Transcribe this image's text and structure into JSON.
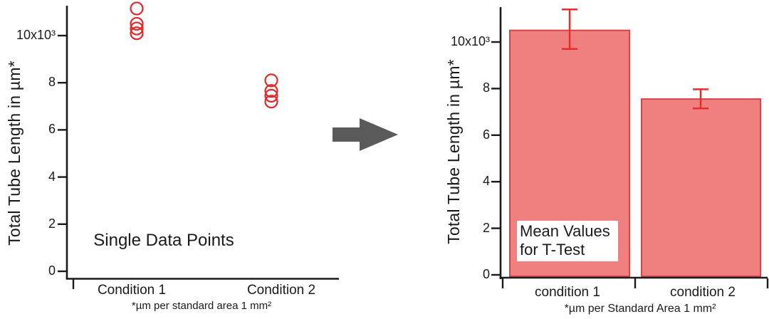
{
  "page": {
    "background": "#ffffff",
    "text_color": "#1a1a1a"
  },
  "arrow": {
    "color": "#5a5a5a"
  },
  "chart_data": [
    {
      "type": "scatter",
      "title": "Single Data Points",
      "ylabel": "Total Tube Length in µm*",
      "footnote": "*µm per standard area 1 mm²",
      "categories": [
        "Condition 1",
        "Condition 2"
      ],
      "series": [
        {
          "name": "Condition 1",
          "values": [
            11150,
            10500,
            10300,
            10100
          ]
        },
        {
          "name": "Condition 2",
          "values": [
            8100,
            7650,
            7450,
            7200
          ]
        }
      ],
      "ylim": [
        0,
        11600
      ],
      "y_tick_values": [
        0,
        2000,
        4000,
        6000,
        8000,
        10000
      ],
      "y_tick_labels": [
        "0",
        "2",
        "4",
        "6",
        "8",
        "10x10³"
      ],
      "grid": false,
      "legend": "none",
      "marker": "open-circle",
      "marker_color": "#e02a2a",
      "axis_color": "#1a1a1a"
    },
    {
      "type": "bar",
      "title": "Mean Values for T-Test",
      "ylabel": "Total Tube Length in µm*",
      "footnote": "*µm per Standard Area 1 mm²",
      "categories": [
        "condition 1",
        "condition 2"
      ],
      "values": [
        10500,
        7550
      ],
      "error_up": [
        900,
        420
      ],
      "error_down": [
        800,
        400
      ],
      "ylim": [
        0,
        11600
      ],
      "y_tick_values": [
        0,
        2000,
        4000,
        6000,
        8000,
        10000
      ],
      "y_tick_labels": [
        "0",
        "2",
        "4",
        "6",
        "8",
        "10x10³"
      ],
      "grid": false,
      "legend": "none",
      "bar_fill": "#f08080",
      "bar_border": "#d64444",
      "error_color": "#e82c2c",
      "axis_color": "#1a1a1a"
    }
  ]
}
